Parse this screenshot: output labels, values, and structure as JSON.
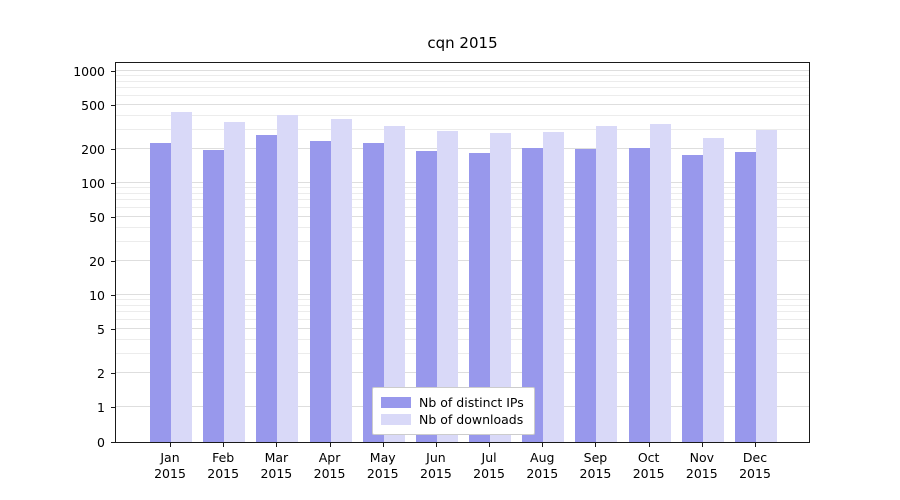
{
  "chart_data": {
    "type": "bar",
    "title": "cqn 2015",
    "categories": [
      [
        "Jan",
        "2015"
      ],
      [
        "Feb",
        "2015"
      ],
      [
        "Mar",
        "2015"
      ],
      [
        "Apr",
        "2015"
      ],
      [
        "May",
        "2015"
      ],
      [
        "Jun",
        "2015"
      ],
      [
        "Jul",
        "2015"
      ],
      [
        "Aug",
        "2015"
      ],
      [
        "Sep",
        "2015"
      ],
      [
        "Oct",
        "2015"
      ],
      [
        "Nov",
        "2015"
      ],
      [
        "Dec",
        "2015"
      ]
    ],
    "series": [
      {
        "name": "Nb of distinct IPs",
        "color": "#9898ec",
        "values": [
          230,
          197,
          270,
          235,
          228,
          193,
          185,
          204,
          200,
          207,
          178,
          188
        ]
      },
      {
        "name": "Nb of downloads",
        "color": "#d9d9f8",
        "values": [
          430,
          350,
          405,
          375,
          320,
          290,
          278,
          283,
          325,
          335,
          250,
          300
        ]
      }
    ],
    "yscale": "symlog",
    "yticks": [
      0,
      1,
      2,
      5,
      10,
      20,
      50,
      100,
      200,
      500,
      1000
    ],
    "ylim": [
      0,
      1200
    ],
    "grid": true,
    "legend_position": "lower center"
  }
}
